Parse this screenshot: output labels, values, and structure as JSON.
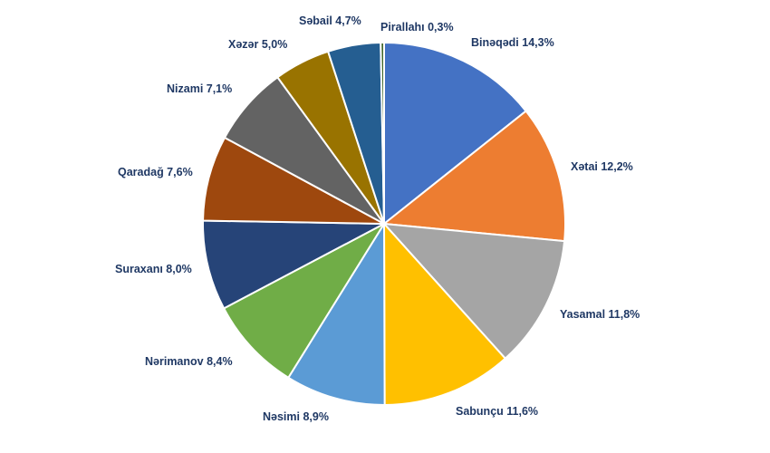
{
  "chart_data": {
    "type": "pie",
    "title": "",
    "start": "top",
    "direction": "clockwise",
    "slices": [
      {
        "name": "Binəqədi",
        "value": 14.3,
        "label": "Binəqədi 14,3%",
        "color": "#4472c4"
      },
      {
        "name": "Xətai",
        "value": 12.2,
        "label": "Xətai 12,2%",
        "color": "#ed7d31"
      },
      {
        "name": "Yasamal",
        "value": 11.8,
        "label": "Yasamal 11,8%",
        "color": "#a5a5a5"
      },
      {
        "name": "Sabunçu",
        "value": 11.6,
        "label": "Sabunçu 11,6%",
        "color": "#ffc000"
      },
      {
        "name": "Nəsimi",
        "value": 8.9,
        "label": "Nəsimi 8,9%",
        "color": "#5b9bd5"
      },
      {
        "name": "Nərimanov",
        "value": 8.4,
        "label": "Nərimanov 8,4%",
        "color": "#70ad47"
      },
      {
        "name": "Suraxanı",
        "value": 8.0,
        "label": "Suraxanı 8,0%",
        "color": "#264478"
      },
      {
        "name": "Qaradağ",
        "value": 7.6,
        "label": "Qaradağ 7,6%",
        "color": "#9e480e"
      },
      {
        "name": "Nizami",
        "value": 7.1,
        "label": "Nizami 7,1%",
        "color": "#636363"
      },
      {
        "name": "Xəzər",
        "value": 5.0,
        "label": "Xəzər 5,0%",
        "color": "#997300"
      },
      {
        "name": "Səbail",
        "value": 4.7,
        "label": "Səbail 4,7%",
        "color": "#255e91"
      },
      {
        "name": "Pirallahı",
        "value": 0.3,
        "label": "Pirallahı 0,3%",
        "color": "#43682b"
      }
    ]
  }
}
